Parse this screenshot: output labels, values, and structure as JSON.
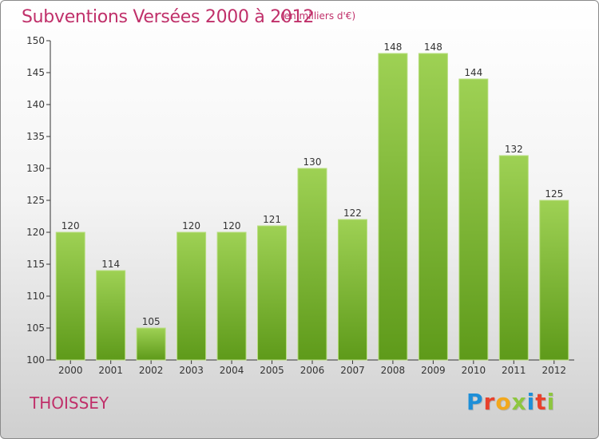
{
  "title": "Subventions Versées 2000 à 2012",
  "unit_note": "(en milliers d'€)",
  "commune": "THOISSEY",
  "logo": {
    "letters": [
      {
        "ch": "P",
        "color": "#1e8fd8"
      },
      {
        "ch": "r",
        "color": "#e8412c"
      },
      {
        "ch": "o",
        "color": "#f2a81d"
      },
      {
        "ch": "x",
        "color": "#8dc63f"
      },
      {
        "ch": "i",
        "color": "#1e8fd8"
      },
      {
        "ch": "t",
        "color": "#e8412c"
      },
      {
        "ch": "i",
        "color": "#8dc63f"
      }
    ]
  },
  "colors": {
    "title": "#c0306a",
    "bar_top": "#9ed154",
    "bar_bottom": "#5e9a1a"
  },
  "chart_data": {
    "type": "bar",
    "categories": [
      "2000",
      "2001",
      "2002",
      "2003",
      "2004",
      "2005",
      "2006",
      "2007",
      "2008",
      "2009",
      "2010",
      "2011",
      "2012"
    ],
    "values": [
      120,
      114,
      105,
      120,
      120,
      121,
      130,
      122,
      148,
      148,
      144,
      132,
      125
    ],
    "ylim": [
      100,
      150
    ],
    "yticks": [
      100,
      105,
      110,
      115,
      120,
      125,
      130,
      135,
      140,
      145,
      150
    ],
    "grid": false,
    "data_labels": true
  }
}
